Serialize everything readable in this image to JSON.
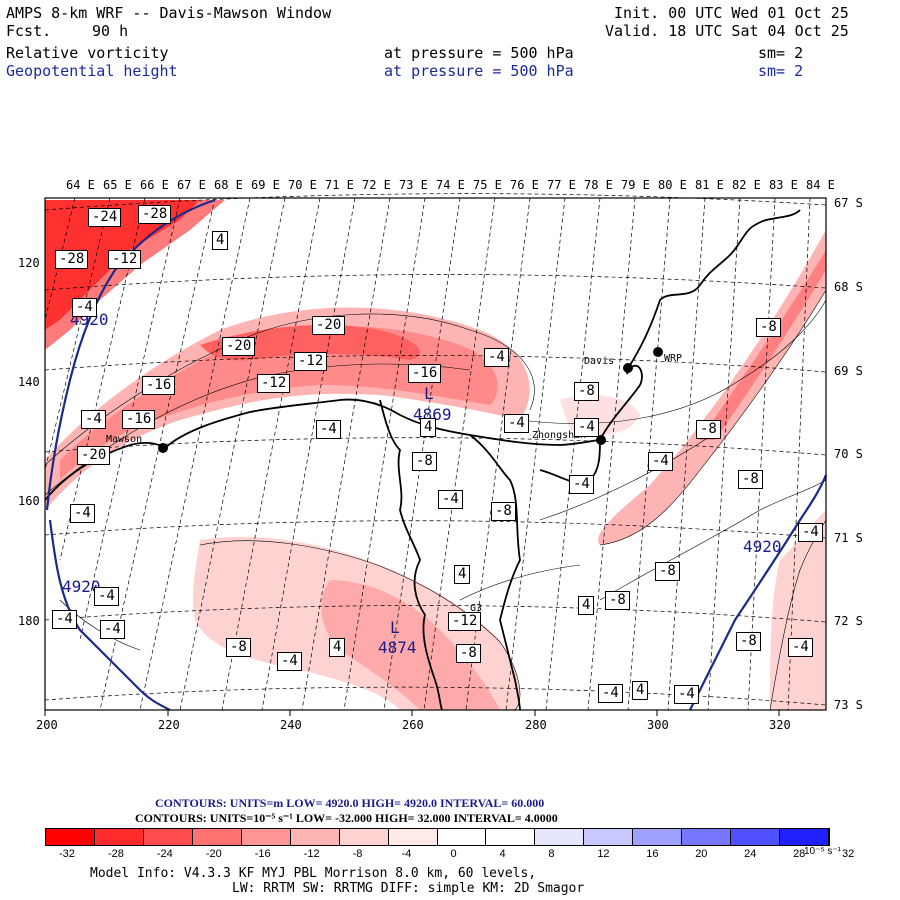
{
  "header": {
    "title": "AMPS 8-km WRF -- Davis-Mawson Window",
    "fcst_label": "Fcst.",
    "fcst_value": "90 h",
    "init": "Init. 00 UTC Wed 01 Oct 25",
    "valid": "Valid. 18 UTC Sat 04 Oct 25",
    "field1": {
      "name": "Relative vorticity",
      "level": "at pressure =  500 hPa",
      "sm": "sm= 2"
    },
    "field2": {
      "name": "Geopotential height",
      "level": "at pressure =  500 hPa",
      "sm": "sm= 2"
    }
  },
  "axes": {
    "lon_top": [
      "64 E",
      "65 E",
      "66 E",
      "67 E",
      "68 E",
      "69 E",
      "70 E",
      "71 E",
      "72 E",
      "73 E",
      "74 E",
      "75 E",
      "76 E",
      "77 E",
      "78 E",
      "79 E",
      "80 E",
      "81 E",
      "82 E",
      "83 E",
      "84 E"
    ],
    "lat_right": [
      "67 S",
      "68 S",
      "69 S",
      "70 S",
      "71 S",
      "72 S",
      "73 S"
    ],
    "x_ticks": [
      "200",
      "220",
      "240",
      "260",
      "280",
      "300",
      "320"
    ],
    "y_ticks": [
      "120",
      "140",
      "160",
      "180"
    ]
  },
  "map_labels": {
    "stations": [
      "Mawson",
      "Davis",
      "Zhongshan",
      "WRP",
      "G3"
    ],
    "lows": [
      {
        "text": "L",
        "value": "4869"
      },
      {
        "text": "L",
        "value": "4874"
      }
    ],
    "height_labels": [
      "4920",
      "4920",
      "4920"
    ],
    "vorticity_labels": [
      "-24",
      "-28",
      "-28",
      "-12",
      "-4",
      "4",
      "-20",
      "-20",
      "-12",
      "-16",
      "-4",
      "-16",
      "-12",
      "-16",
      "-4",
      "-4",
      "-20",
      "-8",
      "4",
      "-8",
      "-4",
      "-4",
      "-4",
      "-8",
      "-4",
      "-4",
      "-8",
      "-8",
      "-8",
      "-4",
      "4",
      "-8",
      "-12",
      "-4",
      "-4",
      "-4",
      "-8",
      "-4",
      "4",
      "4",
      "-8",
      "-8",
      "-4",
      "-8",
      "-4",
      "-4",
      "4",
      "-4",
      "-8"
    ]
  },
  "footer": {
    "contours1": "CONTOURS:  UNITS=m  LOW=   4920.0      HIGH=  4920.0       INTERVAL=    60.000",
    "contours2": "CONTOURS:  UNITS=10⁻⁵ s⁻¹  LOW=  -32.000        HIGH=  32.000      INTERVAL=    4.0000",
    "colorbar_labels": [
      "-32",
      "-28",
      "-24",
      "-20",
      "-16",
      "-12",
      "-8",
      "-4",
      "0",
      "4",
      "8",
      "12",
      "16",
      "20",
      "24",
      "28",
      "32"
    ],
    "colorbar_unit": "10⁻⁵ s⁻¹",
    "model_info": "Model Info: V4.3.3   KF      MYJ PBL  Morrison        8.0 km,  60 levels,",
    "model_info2": "LW: RRTM SW: RRTMG   DIFF: simple KM: 2D Smagor"
  },
  "colors": {
    "colorbar": [
      "#ff0000",
      "#ff2a2a",
      "#ff4d4d",
      "#ff7272",
      "#ff9696",
      "#ffb4b4",
      "#ffd2d2",
      "#ffeaea",
      "#ffffff",
      "#ffffff",
      "#e6e6ff",
      "#c8c8ff",
      "#a0a0ff",
      "#7878ff",
      "#5050ff",
      "#2020ff"
    ],
    "height_contour": "#1a2a8a",
    "coast": "#000000"
  }
}
